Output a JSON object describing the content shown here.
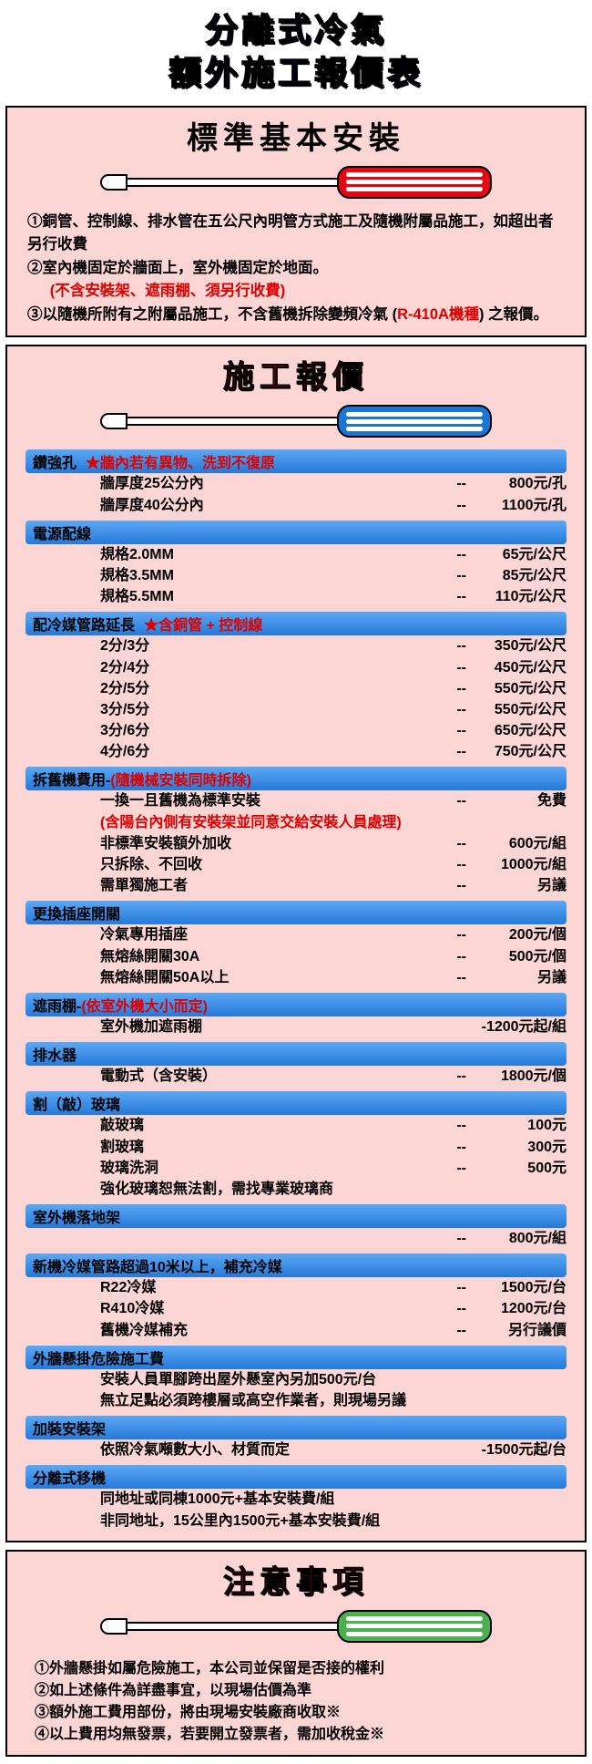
{
  "title_lines": [
    "分離式冷氣",
    "額外施工報價表"
  ],
  "section1": {
    "title": "標準基本安裝",
    "screwdriver_color": "red",
    "notes": [
      {
        "num": "①",
        "text": "銅管、控制線、排水管在五公尺內明管方式施工及隨機附屬品施工，如超出者另行收費"
      },
      {
        "num": "②",
        "text": "室內機固定於牆面上，室外機固定於地面。",
        "red_suffix": "(不含安裝架、遮雨棚、須另行收費)"
      },
      {
        "num": "③",
        "pre": "以隨機所附有之附屬品施工，不含舊機拆除變頻冷氣 (",
        "red_mid": "R-410A機種",
        "post": ") 之報價。"
      }
    ]
  },
  "section2": {
    "title": "施工報價",
    "screwdriver_color": "blue",
    "categories": [
      {
        "header": "鑽強孔",
        "red_note": "★牆內若有異物、洗到不復原",
        "rows": [
          {
            "label": "牆厚度25公分內",
            "dash": "--",
            "price": "800元/孔"
          },
          {
            "label": "牆厚度40公分內",
            "dash": "--",
            "price": "1100元/孔"
          }
        ]
      },
      {
        "header": "電源配線",
        "rows": [
          {
            "label": "規格2.0MM",
            "dash": "--",
            "price": "65元/公尺"
          },
          {
            "label": "規格3.5MM",
            "dash": "--",
            "price": "85元/公尺"
          },
          {
            "label": "規格5.5MM",
            "dash": "--",
            "price": "110元/公尺"
          }
        ]
      },
      {
        "header": "配冷媒管路延長",
        "red_note": "★含銅管 + 控制線",
        "rows": [
          {
            "label": "2分/3分",
            "dash": "--",
            "price": "350元/公尺"
          },
          {
            "label": "2分/4分",
            "dash": "--",
            "price": "450元/公尺"
          },
          {
            "label": "2分/5分",
            "dash": "--",
            "price": "550元/公尺"
          },
          {
            "label": "3分/5分",
            "dash": "--",
            "price": "550元/公尺"
          },
          {
            "label": "3分/6分",
            "dash": "--",
            "price": "650元/公尺"
          },
          {
            "label": "4分/6分",
            "dash": "--",
            "price": "750元/公尺"
          }
        ]
      },
      {
        "header": "拆舊機費用-",
        "red_suffix": "(隨機械安裝同時拆除)",
        "rows": [
          {
            "label": "一換一且舊機為標準安裝",
            "dash": "--",
            "price": "免費"
          },
          {
            "label": "(含陽台內側有安裝架並同意交給安裝人員處理)",
            "full_red": true
          },
          {
            "label": "非標準安裝額外加收",
            "dash": "--",
            "price": "600元/組"
          },
          {
            "label": "只拆除、不回收",
            "dash": "--",
            "price": "1000元/組"
          },
          {
            "label": "需單獨施工者",
            "dash": "--",
            "price": "另議"
          }
        ]
      },
      {
        "header": "更換插座開關",
        "rows": [
          {
            "label": "冷氣專用插座",
            "dash": "--",
            "price": "200元/個"
          },
          {
            "label": "無熔絲開關30A",
            "dash": "--",
            "price": "500元/個"
          },
          {
            "label": "無熔絲開關50A以上",
            "dash": "--",
            "price": "另議"
          }
        ]
      },
      {
        "header": "遮雨棚-",
        "red_suffix": "(依室外機大小而定)",
        "rows": [
          {
            "label": "室外機加遮雨棚",
            "dash": "",
            "price": "-1200元起/組"
          }
        ]
      },
      {
        "header": "排水器",
        "rows": [
          {
            "label": "電動式（含安裝）",
            "dash": "--",
            "price": "1800元/個"
          }
        ]
      },
      {
        "header": "割（敲）玻璃",
        "rows": [
          {
            "label": "敲玻璃",
            "dash": "--",
            "price": "100元"
          },
          {
            "label": "割玻璃",
            "dash": "--",
            "price": "300元"
          },
          {
            "label": "玻璃洗洞",
            "dash": "--",
            "price": "500元"
          },
          {
            "label": "強化玻璃恕無法割，需找專業玻璃商",
            "full": true
          }
        ]
      },
      {
        "header": "室外機落地架",
        "rows": [
          {
            "label": "",
            "dash": "--",
            "price": "800元/組"
          }
        ]
      },
      {
        "header": "新機冷媒管路超過10米以上，補充冷媒",
        "rows": [
          {
            "label": "R22冷媒",
            "dash": "--",
            "price": "1500元/台"
          },
          {
            "label": "R410冷媒",
            "dash": "--",
            "price": "1200元/台"
          },
          {
            "label": "舊機冷媒補充",
            "dash": "--",
            "price": "另行議價"
          }
        ]
      },
      {
        "header": "外牆懸掛危險施工費",
        "rows": [
          {
            "label": "安裝人員單腳跨出屋外懸室內另加500元/台",
            "full": true
          },
          {
            "label": "無立足點必須跨樓層或高空作業者，則現場另議",
            "full": true
          }
        ]
      },
      {
        "header": "加裝安裝架",
        "rows": [
          {
            "label": "依照冷氣噸數大小、材質而定",
            "dash": "",
            "price": "-1500元起/台"
          }
        ]
      },
      {
        "header": "分離式移機",
        "rows": [
          {
            "label": "同地址或同棟1000元+基本安裝費/組",
            "full": true
          },
          {
            "label": "非同地址，15公里內1500元+基本安裝費/組",
            "full": true
          }
        ]
      }
    ]
  },
  "section3": {
    "title": "注意事項",
    "screwdriver_color": "green",
    "notes": [
      "①外牆懸掛如屬危險施工，本公司並保留是否接的權利",
      "②如上述條件為詳盡事宜，以現場估價為準",
      "③額外施工費用部份，將由現場安裝廠商收取※",
      "④以上費用均無發票，若要開立發票者，需加收稅金※"
    ]
  },
  "colors": {
    "panel_bg": "#fcd5d5",
    "header_blue": "#2579d8",
    "accent_red": "#d00",
    "title_blue": "#0000cc"
  }
}
